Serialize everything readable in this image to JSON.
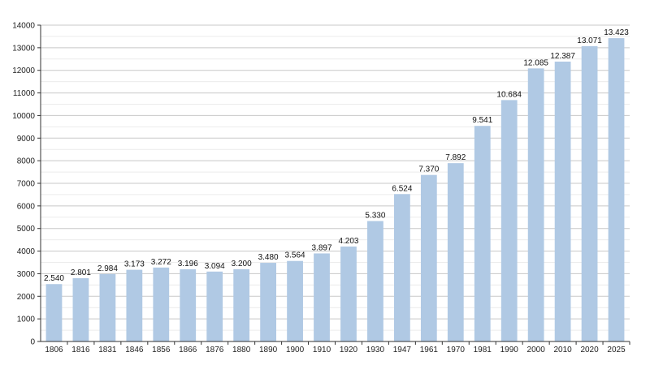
{
  "chart_data": {
    "type": "bar",
    "categories": [
      "1806",
      "1816",
      "1831",
      "1846",
      "1856",
      "1866",
      "1876",
      "1880",
      "1890",
      "1900",
      "1910",
      "1920",
      "1930",
      "1947",
      "1961",
      "1970",
      "1981",
      "1990",
      "2000",
      "2010",
      "2020",
      "2025"
    ],
    "values": [
      2540,
      2801,
      2984,
      3173,
      3272,
      3196,
      3094,
      3200,
      3480,
      3564,
      3897,
      4203,
      5330,
      6524,
      7370,
      7892,
      9541,
      10684,
      12085,
      12387,
      13071,
      13423
    ],
    "value_labels": [
      "2.540",
      "2.801",
      "2.984",
      "3.173",
      "3.272",
      "3.196",
      "3.094",
      "3.200",
      "3.480",
      "3.564",
      "3.897",
      "4.203",
      "5.330",
      "6.524",
      "7.370",
      "7.892",
      "9.541",
      "10.684",
      "12.085",
      "12.387",
      "13.071",
      "13.423"
    ],
    "title": "",
    "xlabel": "",
    "ylabel": "",
    "ylim": [
      0,
      14000
    ],
    "yticks": [
      0,
      1000,
      2000,
      3000,
      4000,
      5000,
      6000,
      7000,
      8000,
      9000,
      10000,
      11000,
      12000,
      13000,
      14000
    ],
    "grid": true,
    "legend": "none",
    "bar_color": "#b0c9e4",
    "grid_color": "#c8c8c8",
    "axis_color": "#333333"
  }
}
